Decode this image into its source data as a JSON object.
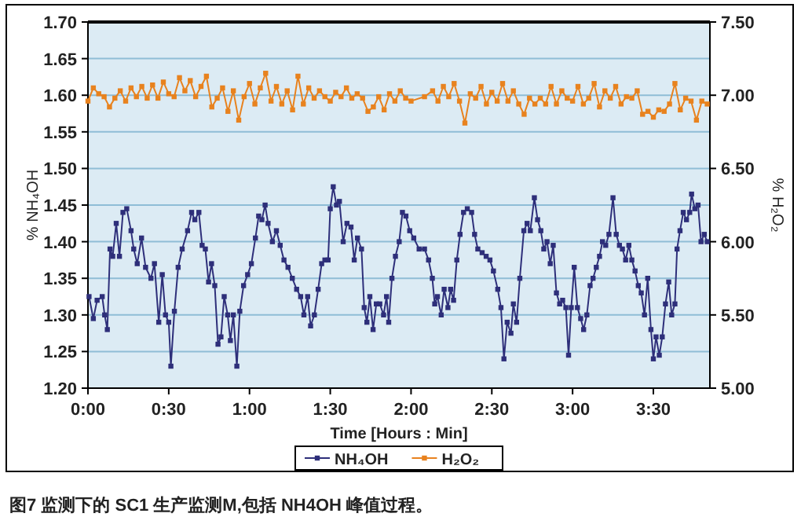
{
  "chart_data": {
    "type": "line",
    "xlabel": "Time [Hours : Min]",
    "ylabel": "% NH₄OH",
    "y2label": "% H₂O₂",
    "annotations": [
      "图7 监测下的 SC1 生产监测M,包括 NH4OH 峰值过程。"
    ],
    "xlim": [
      0,
      231
    ],
    "xticks": [
      {
        "value": 0,
        "label": "0:00"
      },
      {
        "value": 30,
        "label": "0:30"
      },
      {
        "value": 60,
        "label": "1:00"
      },
      {
        "value": 90,
        "label": "1:30"
      },
      {
        "value": 120,
        "label": "2:00"
      },
      {
        "value": 150,
        "label": "2:30"
      },
      {
        "value": 180,
        "label": "3:00"
      },
      {
        "value": 210,
        "label": "3:30"
      }
    ],
    "ylim": [
      1.2,
      1.7
    ],
    "yticks": [
      {
        "value": 1.2,
        "label": "1.20"
      },
      {
        "value": 1.25,
        "label": "1.25"
      },
      {
        "value": 1.3,
        "label": "1.30"
      },
      {
        "value": 1.35,
        "label": "1.35"
      },
      {
        "value": 1.4,
        "label": "1.40"
      },
      {
        "value": 1.45,
        "label": "1.45"
      },
      {
        "value": 1.5,
        "label": "1.50"
      },
      {
        "value": 1.55,
        "label": "1.55"
      },
      {
        "value": 1.6,
        "label": "1.60"
      },
      {
        "value": 1.65,
        "label": "1.65"
      },
      {
        "value": 1.7,
        "label": "1.70"
      }
    ],
    "y2lim": [
      5.0,
      7.5
    ],
    "y2ticks": [
      {
        "value": 5.0,
        "label": "5.00"
      },
      {
        "value": 5.5,
        "label": "5.50"
      },
      {
        "value": 6.0,
        "label": "6.00"
      },
      {
        "value": 6.5,
        "label": "6.50"
      },
      {
        "value": 7.0,
        "label": "7.00"
      },
      {
        "value": 7.5,
        "label": "7.50"
      }
    ],
    "grid": "y",
    "legend": "bottom",
    "marker": "square",
    "line_style": "solid",
    "series": [
      {
        "name": "NH₄OH",
        "color": "#2e2f7a",
        "x": [
          0.4,
          2,
          3.4,
          5.3,
          6.2,
          7.2,
          8.2,
          9.2,
          10.5,
          11.7,
          13,
          14.4,
          16,
          17,
          18.3,
          19.9,
          21.4,
          23.4,
          24.7,
          26.3,
          27.6,
          28.8,
          30,
          30.8,
          32.1,
          33.5,
          35,
          37,
          38.5,
          39.7,
          41.2,
          42.4,
          43.6,
          44.8,
          45.9,
          47.1,
          48.3,
          49.4,
          50.6,
          51.9,
          52.9,
          54,
          55.3,
          56.4,
          57.8,
          59.3,
          60.7,
          62.2,
          63.4,
          64.6,
          65.8,
          66.9,
          68.5,
          70,
          71.4,
          72.8,
          74.3,
          75.9,
          77.5,
          79,
          80.2,
          81.6,
          82.7,
          84.1,
          85.5,
          86.8,
          88,
          89.2,
          90,
          91.1,
          92.3,
          93.4,
          94.8,
          96.2,
          97.7,
          98.9,
          100.1,
          101.6,
          102.6,
          103.6,
          104.7,
          105.9,
          107.1,
          108.4,
          109.8,
          110.9,
          111.7,
          112.9,
          114.2,
          115.6,
          116.8,
          118.1,
          119.5,
          121,
          123,
          125,
          126.5,
          127.9,
          128.8,
          129.8,
          131.2,
          132.3,
          133.7,
          134.7,
          135.8,
          137,
          138.2,
          139.5,
          140.9,
          142.5,
          143.6,
          144.8,
          146.4,
          147.9,
          149.3,
          150.6,
          152.2,
          153.4,
          154.5,
          155.7,
          157.1,
          158,
          159.2,
          160.4,
          161.9,
          163.1,
          164.3,
          165.8,
          167,
          168.2,
          169.3,
          170.5,
          171.7,
          172.8,
          174,
          175.2,
          176.3,
          177.5,
          178.5,
          179.5,
          180.6,
          181.8,
          183,
          184.1,
          185.3,
          186.5,
          187.6,
          188.8,
          190,
          191.1,
          192.3,
          193.5,
          195,
          196.2,
          197.4,
          198.5,
          199.7,
          200.9,
          202,
          203.2,
          204.4,
          205.5,
          206.7,
          207.9,
          209.1,
          210,
          211,
          212.2,
          213.3,
          214.5,
          215.7,
          216.8,
          218,
          218.8,
          219.9,
          221.1,
          222.3,
          223.5,
          224.2,
          225.4,
          226.6,
          227.7,
          228.9,
          230
        ],
        "values": [
          1.325,
          1.295,
          1.32,
          1.325,
          1.3,
          1.28,
          1.39,
          1.38,
          1.425,
          1.38,
          1.44,
          1.445,
          1.415,
          1.39,
          1.37,
          1.405,
          1.365,
          1.35,
          1.37,
          1.29,
          1.355,
          1.3,
          1.29,
          1.23,
          1.305,
          1.365,
          1.39,
          1.415,
          1.44,
          1.43,
          1.44,
          1.395,
          1.39,
          1.345,
          1.37,
          1.34,
          1.26,
          1.27,
          1.325,
          1.3,
          1.265,
          1.3,
          1.23,
          1.305,
          1.34,
          1.355,
          1.37,
          1.405,
          1.435,
          1.43,
          1.45,
          1.425,
          1.4,
          1.415,
          1.395,
          1.375,
          1.365,
          1.35,
          1.335,
          1.325,
          1.3,
          1.325,
          1.285,
          1.3,
          1.335,
          1.37,
          1.375,
          1.375,
          1.445,
          1.475,
          1.45,
          1.455,
          1.4,
          1.425,
          1.42,
          1.375,
          1.405,
          1.39,
          1.31,
          1.29,
          1.325,
          1.28,
          1.315,
          1.315,
          1.3,
          1.325,
          1.29,
          1.35,
          1.38,
          1.4,
          1.44,
          1.435,
          1.415,
          1.405,
          1.39,
          1.39,
          1.375,
          1.35,
          1.315,
          1.325,
          1.3,
          1.335,
          1.31,
          1.335,
          1.32,
          1.375,
          1.41,
          1.44,
          1.445,
          1.44,
          1.41,
          1.39,
          1.385,
          1.38,
          1.375,
          1.36,
          1.335,
          1.31,
          1.24,
          1.29,
          1.275,
          1.315,
          1.29,
          1.35,
          1.415,
          1.425,
          1.415,
          1.46,
          1.43,
          1.415,
          1.39,
          1.4,
          1.37,
          1.395,
          1.33,
          1.315,
          1.32,
          1.31,
          1.245,
          1.31,
          1.365,
          1.31,
          1.295,
          1.28,
          1.3,
          1.34,
          1.35,
          1.365,
          1.38,
          1.4,
          1.395,
          1.41,
          1.46,
          1.41,
          1.395,
          1.39,
          1.375,
          1.395,
          1.375,
          1.36,
          1.34,
          1.33,
          1.3,
          1.35,
          1.28,
          1.24,
          1.27,
          1.245,
          1.27,
          1.315,
          1.345,
          1.3,
          1.315,
          1.39,
          1.415,
          1.44,
          1.43,
          1.44,
          1.465,
          1.445,
          1.45,
          1.4,
          1.41,
          1.4
        ]
      },
      {
        "name": "H₂O₂",
        "color": "#e8821e",
        "axis": "y2",
        "x": [
          0,
          2,
          4,
          6,
          8,
          10,
          12,
          14,
          16,
          18,
          20,
          22,
          24,
          26,
          28,
          30,
          32,
          34,
          36,
          38,
          40,
          42,
          44,
          46,
          48,
          50,
          52,
          54,
          56,
          58,
          60,
          62,
          64,
          66,
          68,
          70,
          72,
          74,
          76,
          78,
          80,
          82,
          84,
          86,
          88,
          90,
          92,
          94,
          96,
          98,
          100,
          102,
          104,
          106,
          108,
          110,
          112,
          114,
          116,
          118,
          120,
          125,
          128,
          130,
          132,
          134,
          136,
          138,
          140,
          142,
          144,
          146,
          148,
          150,
          152,
          154,
          156,
          158,
          160,
          162,
          164,
          166,
          168,
          170,
          172,
          174,
          176,
          178,
          180,
          182,
          184,
          186,
          188,
          190,
          192,
          194,
          196,
          198,
          200,
          202,
          204,
          206,
          208,
          210,
          212,
          214,
          216,
          218,
          220,
          222,
          224,
          226,
          228,
          230
        ],
        "values": [
          6.96,
          7.05,
          7.01,
          6.99,
          6.92,
          6.98,
          7.03,
          6.96,
          7.05,
          6.99,
          7.06,
          6.98,
          7.07,
          6.98,
          7.09,
          7.01,
          6.99,
          7.12,
          7.03,
          7.1,
          6.99,
          7.06,
          7.13,
          6.92,
          6.98,
          7.05,
          6.89,
          7.03,
          6.83,
          6.99,
          7.08,
          6.94,
          7.05,
          7.15,
          6.96,
          7.06,
          6.94,
          7.03,
          6.9,
          7.13,
          6.94,
          7.05,
          6.98,
          7.03,
          6.99,
          6.96,
          7.02,
          6.99,
          7.05,
          6.98,
          7.01,
          6.98,
          6.89,
          6.92,
          6.99,
          6.9,
          7.01,
          6.96,
          7.03,
          6.98,
          6.96,
          6.99,
          7.03,
          6.96,
          7.06,
          6.99,
          7.08,
          6.96,
          6.81,
          7.01,
          6.98,
          7.06,
          6.94,
          7.02,
          6.96,
          7.08,
          6.96,
          7.03,
          6.94,
          6.87,
          6.98,
          6.94,
          6.98,
          6.94,
          7.06,
          6.94,
          7.03,
          6.98,
          6.96,
          7.06,
          6.94,
          6.98,
          7.08,
          6.92,
          7.03,
          6.98,
          7.06,
          6.94,
          6.99,
          6.98,
          7.03,
          6.87,
          6.89,
          6.85,
          6.9,
          6.89,
          6.94,
          7.08,
          6.9,
          6.98,
          6.96,
          6.83,
          6.96,
          6.94
        ]
      }
    ]
  }
}
